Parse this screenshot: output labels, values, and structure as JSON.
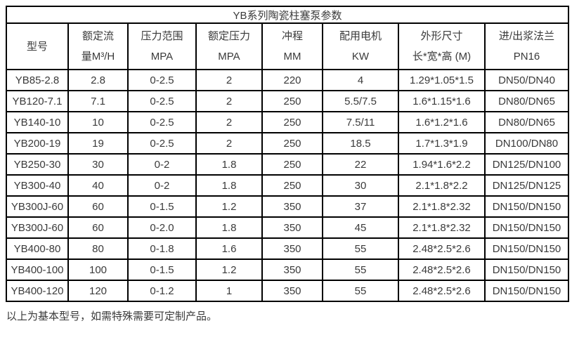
{
  "table": {
    "title": "YB系列陶瓷柱塞泵参数",
    "columns": [
      {
        "lines": [
          "型号"
        ]
      },
      {
        "lines": [
          "额定流",
          "量M³/H"
        ]
      },
      {
        "lines": [
          "压力范围",
          "MPA"
        ]
      },
      {
        "lines": [
          "额定压力",
          "MPA"
        ]
      },
      {
        "lines": [
          "冲程",
          "MM"
        ]
      },
      {
        "lines": [
          "配用电机",
          "KW"
        ]
      },
      {
        "lines": [
          "外形尺寸",
          "长*宽*高 (M)"
        ]
      },
      {
        "lines": [
          "进/出浆法兰",
          "PN16"
        ]
      }
    ],
    "rows": [
      [
        "YB85-2.8",
        "2.8",
        "0-2.5",
        "2",
        "220",
        "4",
        "1.29*1.05*1.5",
        "DN50/DN40"
      ],
      [
        "YB120-7.1",
        "7.1",
        "0-2.5",
        "2",
        "250",
        "5.5/7.5",
        "1.6*1.15*1.6",
        "DN80/DN65"
      ],
      [
        "YB140-10",
        "10",
        "0-2.5",
        "2",
        "250",
        "7.5/11",
        "1.6*1.2*1.6",
        "DN80/DN65"
      ],
      [
        "YB200-19",
        "19",
        "0-2.5",
        "2",
        "250",
        "18.5",
        "1.7*1.3*1.9",
        "DN100/DN80"
      ],
      [
        "YB250-30",
        "30",
        "0-2",
        "1.8",
        "250",
        "22",
        "1.94*1.6*2.2",
        "DN125/DN100"
      ],
      [
        "YB300-40",
        "40",
        "0-2",
        "1.8",
        "250",
        "30",
        "2.1*1.8*2.2",
        "DN125/DN125"
      ],
      [
        "YB300J-60",
        "60",
        "0-1.5",
        "1.2",
        "350",
        "37",
        "2.1*1.8*2.32",
        "DN150/DN150"
      ],
      [
        "YB300J-60",
        "60",
        "0-2.0",
        "1.8",
        "350",
        "45",
        "2.1*1.8*2.32",
        "DN150/DN150"
      ],
      [
        "YB400-80",
        "80",
        "0-1.8",
        "1.6",
        "350",
        "55",
        "2.48*2.5*2.6",
        "DN150/DN150"
      ],
      [
        "YB400-100",
        "100",
        "0-1.5",
        "1.2",
        "350",
        "55",
        "2.48*2.5*2.6",
        "DN150/DN150"
      ],
      [
        "YB400-120",
        "120",
        "0-1.2",
        "1",
        "350",
        "55",
        "2.48*2.5*2.6",
        "DN150/DN150"
      ]
    ],
    "footer": "以上为基本型号，如需特殊需要可定制产品。"
  },
  "colors": {
    "border": "#000000",
    "text": "#3a3a3a",
    "page_background": "#ffffff"
  }
}
